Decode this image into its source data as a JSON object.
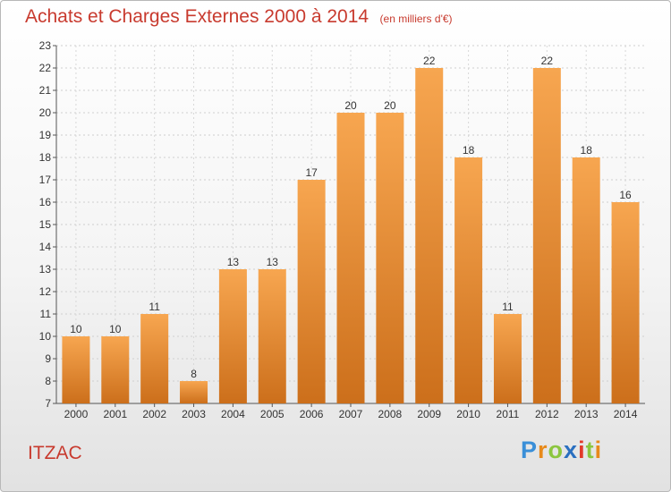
{
  "header": {
    "title": "Achats et Charges Externes 2000 à 2014",
    "unit": "(en milliers d'€)"
  },
  "commune": "ITZAC",
  "logo": {
    "text": "Proxiti",
    "letters": [
      "P",
      "r",
      "o",
      "x",
      "i",
      "t",
      "i"
    ],
    "colors": [
      "#3a8fd8",
      "#e88a1a",
      "#8cc63f",
      "#2a6fc0",
      "#e23a2a",
      "#8cc63f",
      "#e88a1a"
    ]
  },
  "colors": {
    "bar_light": "#f7a650",
    "bar_dark": "#cc6f1b",
    "text": "#c83a2e"
  },
  "chart_data": {
    "type": "bar",
    "categories": [
      "2000",
      "2001",
      "2002",
      "2003",
      "2004",
      "2005",
      "2006",
      "2007",
      "2008",
      "2009",
      "2010",
      "2011",
      "2012",
      "2013",
      "2014"
    ],
    "values": [
      10,
      10,
      11,
      8,
      13,
      13,
      17,
      20,
      20,
      22,
      18,
      11,
      22,
      18,
      16
    ],
    "ylim": [
      7,
      23
    ],
    "yticks": [
      7,
      8,
      9,
      10,
      11,
      12,
      13,
      14,
      15,
      16,
      17,
      18,
      19,
      20,
      21,
      22,
      23
    ],
    "grid": true,
    "data_labels": true
  }
}
